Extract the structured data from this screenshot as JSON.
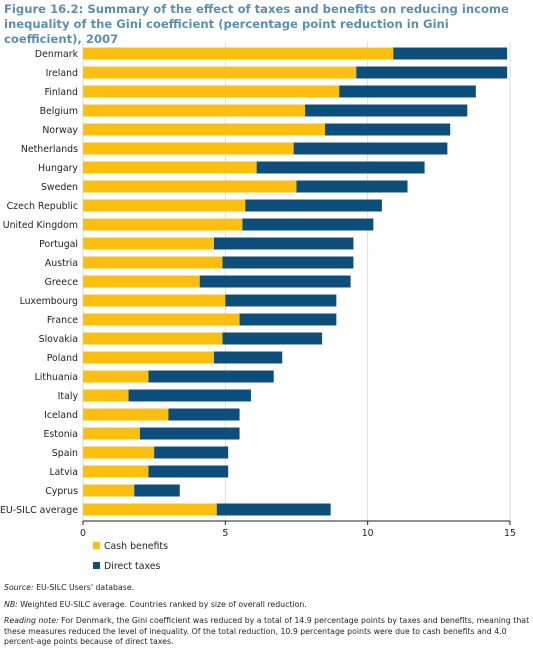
{
  "figure": {
    "label": "Figure 16.2:",
    "title": "Summary of the effect of taxes and benefits on reducing income inequality of the Gini coefficient (percentage point reduction in Gini coefficient), 2007"
  },
  "colors": {
    "cash": "#fcbf0f",
    "tax": "#0d4f7a",
    "title": "#5b8fab"
  },
  "chart_data": {
    "type": "bar",
    "orientation": "horizontal",
    "stacked": true,
    "categories": [
      "Denmark",
      "Ireland",
      "Finland",
      "Belgium",
      "Norway",
      "Netherlands",
      "Hungary",
      "Sweden",
      "Czech Republic",
      "United Kingdom",
      "Portugal",
      "Austria",
      "Greece",
      "Luxembourg",
      "France",
      "Slovakia",
      "Poland",
      "Lithuania",
      "Italy",
      "Iceland",
      "Estonia",
      "Spain",
      "Latvia",
      "Cyprus",
      "EU-SILC average"
    ],
    "series": [
      {
        "name": "Cash benefits",
        "values": [
          10.9,
          9.6,
          9.0,
          7.8,
          8.5,
          7.4,
          6.1,
          7.5,
          5.7,
          5.6,
          4.6,
          4.9,
          4.1,
          5.0,
          5.5,
          4.9,
          4.6,
          2.3,
          1.6,
          3.0,
          2.0,
          2.5,
          2.3,
          1.8,
          4.7
        ]
      },
      {
        "name": "Direct taxes",
        "values": [
          4.0,
          5.3,
          4.8,
          5.7,
          4.4,
          5.4,
          5.9,
          3.9,
          4.8,
          4.6,
          4.9,
          4.6,
          5.3,
          3.9,
          3.4,
          3.5,
          2.4,
          4.4,
          4.3,
          2.5,
          3.5,
          2.6,
          2.8,
          1.6,
          4.0
        ]
      }
    ],
    "xlim": [
      0,
      15
    ],
    "xticks": [
      "0",
      "5",
      "10",
      "15"
    ],
    "grid": true,
    "legend_position": "bottom-left"
  },
  "notes": {
    "source_label": "Source:",
    "source_text": "EU-SILC Users' database.",
    "nb_label": "NB:",
    "nb_text": "Weighted EU-SILC average. Countries ranked by size of overall reduction.",
    "reading_label": "Reading note:",
    "reading_text": "For Denmark, the Gini coefficient was reduced by a total of 14.9 percentage points by taxes and benefits, meaning that these measures reduced the level of inequality. Of the total reduction, 10.9 percentage points were due to cash benefits and 4.0 percent-age points because of direct taxes."
  }
}
